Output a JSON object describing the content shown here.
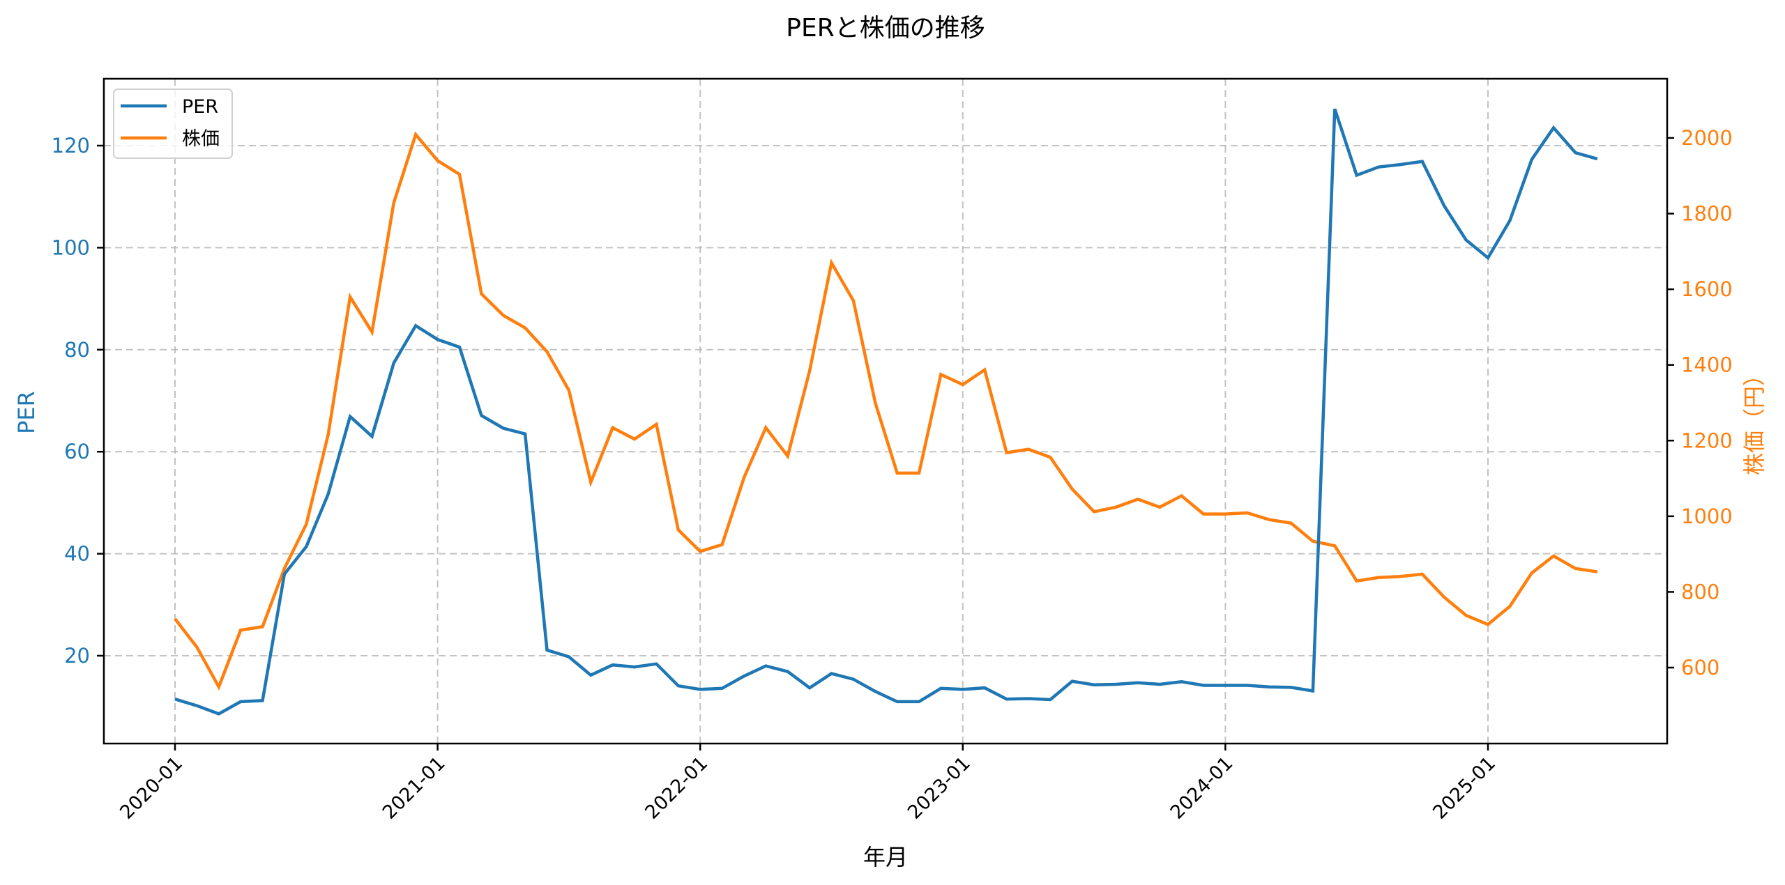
{
  "chart_data": {
    "type": "line",
    "title": "PERと株価の推移",
    "xlabel": "年月",
    "ylabel": "PER",
    "ylabel_right": "株価（円）",
    "x_tick_labels": [
      "2020-01",
      "2021-01",
      "2022-01",
      "2023-01",
      "2024-01",
      "2025-01"
    ],
    "y_ticks_left": [
      20,
      40,
      60,
      80,
      100,
      120
    ],
    "y_ticks_right": [
      600,
      800,
      1000,
      1200,
      1400,
      1600,
      1800,
      2000
    ],
    "ylim_left": [
      2.8,
      133.1
    ],
    "ylim_right": [
      399,
      2157
    ],
    "grid": true,
    "legend_position": "upper left",
    "colors": {
      "PER": "#1f77b4",
      "株価": "#ff7f0e"
    },
    "x": [
      "2020-01",
      "2020-02",
      "2020-03",
      "2020-04",
      "2020-05",
      "2020-06",
      "2020-07",
      "2020-08",
      "2020-09",
      "2020-10",
      "2020-11",
      "2020-12",
      "2021-01",
      "2021-02",
      "2021-03",
      "2021-04",
      "2021-05",
      "2021-06",
      "2021-07",
      "2021-08",
      "2021-09",
      "2021-10",
      "2021-11",
      "2021-12",
      "2022-01",
      "2022-02",
      "2022-03",
      "2022-04",
      "2022-05",
      "2022-06",
      "2022-07",
      "2022-08",
      "2022-09",
      "2022-10",
      "2022-11",
      "2022-12",
      "2023-01",
      "2023-02",
      "2023-03",
      "2023-04",
      "2023-05",
      "2023-06",
      "2023-07",
      "2023-08",
      "2023-09",
      "2023-10",
      "2023-11",
      "2023-12",
      "2024-01",
      "2024-02",
      "2024-03",
      "2024-04",
      "2024-05",
      "2024-06",
      "2024-07",
      "2024-08",
      "2024-09",
      "2024-10",
      "2024-11",
      "2024-12",
      "2025-01",
      "2025-02",
      "2025-03",
      "2025-04",
      "2025-05",
      "2025-06"
    ],
    "series": [
      {
        "name": "PER",
        "axis": "left",
        "values": [
          11.5,
          10.2,
          8.6,
          11.0,
          11.2,
          36.0,
          41.4,
          51.7,
          66.9,
          63.0,
          77.4,
          84.7,
          82.0,
          80.5,
          67.1,
          64.6,
          63.5,
          21.1,
          19.8,
          16.2,
          18.2,
          17.8,
          18.4,
          14.1,
          13.4,
          13.6,
          16.0,
          18.0,
          16.9,
          13.7,
          16.5,
          15.4,
          13.0,
          11.0,
          11.0,
          13.6,
          13.4,
          13.7,
          11.5,
          11.6,
          11.4,
          15.0,
          14.3,
          14.4,
          14.7,
          14.4,
          14.9,
          14.2,
          14.2,
          14.2,
          13.9,
          13.8,
          13.1,
          127.2,
          114.2,
          115.8,
          116.3,
          116.9,
          108.2,
          101.5,
          98.0,
          105.3,
          117.3,
          123.5,
          118.6,
          117.4
        ]
      },
      {
        "name": "株価",
        "axis": "right",
        "values": [
          729,
          654,
          549,
          699,
          708,
          862,
          979,
          1216,
          1580,
          1487,
          1829,
          2009,
          1940,
          1904,
          1588,
          1531,
          1498,
          1435,
          1333,
          1090,
          1234,
          1204,
          1243,
          964,
          907,
          925,
          1102,
          1234,
          1159,
          1384,
          1670,
          1570,
          1300,
          1114,
          1114,
          1375,
          1348,
          1387,
          1168,
          1177,
          1156,
          1072,
          1012,
          1024,
          1045,
          1024,
          1054,
          1006,
          1006,
          1009,
          991,
          982,
          934,
          922,
          829,
          838,
          841,
          847,
          786,
          738,
          714,
          762,
          850,
          895,
          862,
          853
        ]
      }
    ]
  },
  "legend": {
    "items": [
      {
        "label": "PER",
        "color": "#1f77b4"
      },
      {
        "label": "株価",
        "color": "#ff7f0e"
      }
    ]
  }
}
